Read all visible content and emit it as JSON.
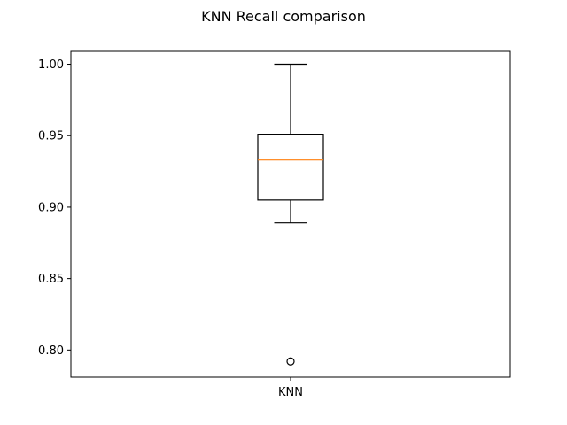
{
  "chart_data": {
    "type": "box",
    "title": "KNN Recall comparison",
    "xlabel": "",
    "ylabel": "",
    "categories": [
      "KNN"
    ],
    "ylim": [
      0.781,
      1.009
    ],
    "yticks": [
      "0.80",
      "0.85",
      "0.90",
      "0.95",
      "1.00"
    ],
    "grid": false,
    "boxes": [
      {
        "label": "KNN",
        "whisker_low": 0.889,
        "q1": 0.905,
        "median": 0.933,
        "q3": 0.951,
        "whisker_high": 1.0,
        "outliers": [
          0.792
        ]
      }
    ],
    "colors": {
      "box": "#000000",
      "median": "#ff7f0e",
      "outlier": "#000000"
    }
  }
}
